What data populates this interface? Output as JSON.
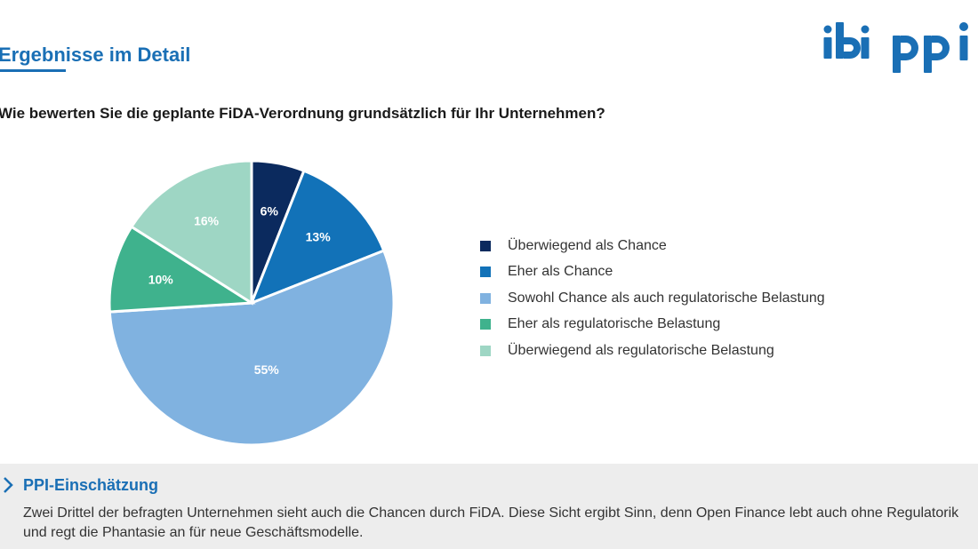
{
  "header": {
    "section_title": "Ergebnisse im Detail"
  },
  "logo": {
    "text_left": "ibi",
    "text_right": "ppi",
    "color": "#1a6fb5"
  },
  "chart_data": {
    "type": "pie",
    "title": "Wie bewerten Sie die geplante FiDA-Verordnung grundsätzlich für Ihr Unternehmen?",
    "categories": [
      "Überwiegend als Chance",
      "Eher als Chance",
      "Sowohl Chance als auch regulatorische Belastung",
      "Eher als regulatorische Belastung",
      "Überwiegend als regulatorische Belastung"
    ],
    "values": [
      6,
      13,
      55,
      10,
      16
    ],
    "labels": [
      "6%",
      "13%",
      "55%",
      "10%",
      "16%"
    ],
    "colors": [
      "#0b2a5e",
      "#1272b8",
      "#80b2e0",
      "#3fb28d",
      "#9ed6c4"
    ],
    "start": "12 o'clock",
    "direction": "clockwise",
    "legend_position": "right"
  },
  "assessment": {
    "heading": "PPI-Einschätzung",
    "text": "Zwei Drittel der befragten Unternehmen sieht auch die Chancen durch FiDA. Diese Sicht ergibt Sinn, denn Open Finance lebt auch ohne Regulatorik und regt die Phantasie an für neue Geschäftsmodelle."
  }
}
